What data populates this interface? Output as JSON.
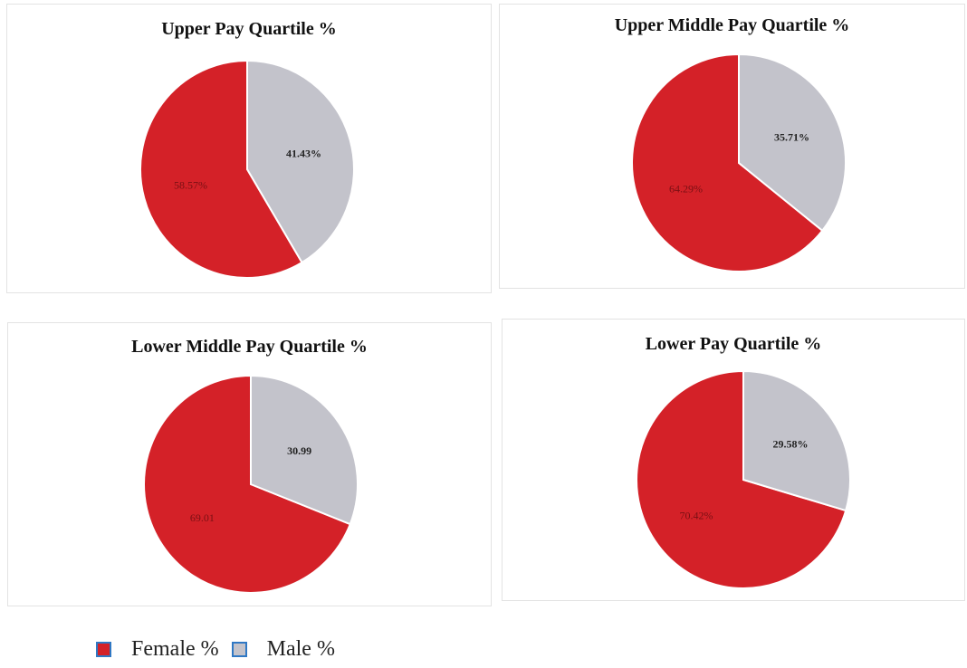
{
  "chart_data": [
    {
      "type": "pie",
      "title": "Upper Pay Quartile %",
      "slices": [
        {
          "name": "Female %",
          "value": 58.57,
          "label": "58.57%"
        },
        {
          "name": "Male %",
          "value": 41.43,
          "label": "41.43%"
        }
      ]
    },
    {
      "type": "pie",
      "title": "Upper Middle Pay Quartile %",
      "slices": [
        {
          "name": "Female %",
          "value": 64.29,
          "label": "64.29%"
        },
        {
          "name": "Male %",
          "value": 35.71,
          "label": "35.71%"
        }
      ]
    },
    {
      "type": "pie",
      "title": "Lower Middle Pay Quartile %",
      "slices": [
        {
          "name": "Female %",
          "value": 69.01,
          "label": "69.01"
        },
        {
          "name": "Male %",
          "value": 30.99,
          "label": "30.99"
        }
      ]
    },
    {
      "type": "pie",
      "title": "Lower Pay Quartile %",
      "slices": [
        {
          "name": "Female %",
          "value": 70.42,
          "label": "70.42%"
        },
        {
          "name": "Male %",
          "value": 29.58,
          "label": "29.58%"
        }
      ]
    }
  ],
  "legend": {
    "items": [
      {
        "label": "Female %",
        "color": "#d42128"
      },
      {
        "label": "Male %",
        "color": "#c3c3cb"
      }
    ],
    "border_color": "#2f78c4"
  },
  "colors": {
    "female": "#d42128",
    "male": "#c3c3cb",
    "female_label": "#7a1014",
    "male_label": "#222222"
  }
}
